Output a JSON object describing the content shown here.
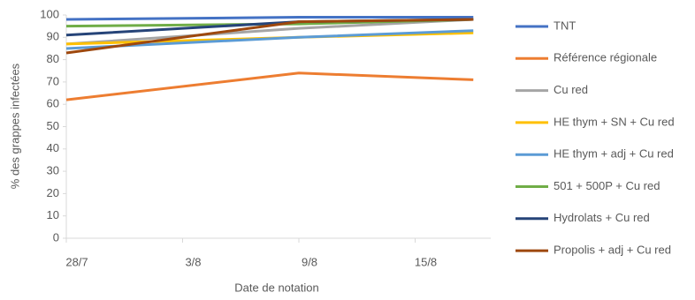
{
  "chart_data": {
    "type": "line",
    "y_label": "% des grappes infectées",
    "x_label": "Date de notation",
    "x": [
      0,
      12,
      21
    ],
    "xlim": [
      0,
      21.9
    ],
    "xticks": [
      {
        "value": 0,
        "label": "28/7"
      },
      {
        "value": 6,
        "label": "3/8"
      },
      {
        "value": 12,
        "label": "9/8"
      },
      {
        "value": 18,
        "label": "15/8"
      }
    ],
    "ylim": [
      0,
      100
    ],
    "yticks": [
      0,
      10,
      20,
      30,
      40,
      50,
      60,
      70,
      80,
      90,
      100
    ],
    "grid": false,
    "legend": "right",
    "series": [
      {
        "name": "TNT",
        "color": "#4472c4",
        "values": [
          98,
          99,
          99
        ]
      },
      {
        "name": "Référence régionale",
        "color": "#ed7d31",
        "values": [
          62,
          74,
          71
        ]
      },
      {
        "name": "Cu red",
        "color": "#a5a5a5",
        "values": [
          87,
          94,
          98
        ]
      },
      {
        "name": "HE thym + SN + Cu red",
        "color": "#ffc000",
        "values": [
          87,
          90,
          92
        ]
      },
      {
        "name": "HE thym + adj + Cu red",
        "color": "#5b9bd5",
        "values": [
          85,
          90,
          93
        ]
      },
      {
        "name": "501 + 500P + Cu red",
        "color": "#70ad47",
        "values": [
          95,
          96,
          98
        ]
      },
      {
        "name": "Hydrolats + Cu red",
        "color": "#264478",
        "values": [
          91,
          97,
          98
        ]
      },
      {
        "name": "Propolis + adj + Cu red",
        "color": "#9e480e",
        "values": [
          83,
          97,
          98
        ]
      }
    ]
  }
}
